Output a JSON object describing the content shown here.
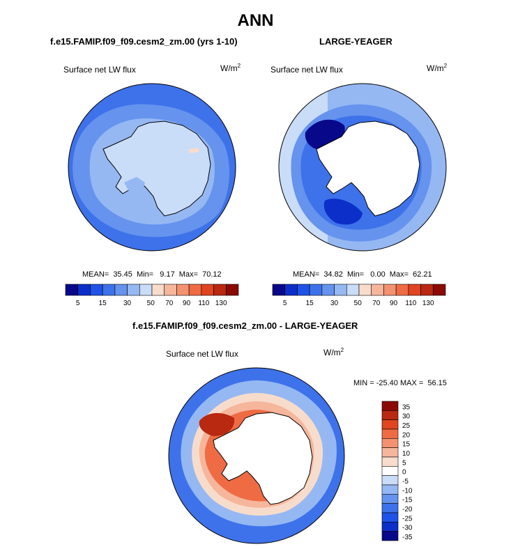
{
  "page_title": "ANN",
  "panels": [
    {
      "title": "f.e15.FAMIP.f09_f09.cesm2_zm.00 (yrs 1-10)",
      "variable": "Surface net LW flux",
      "units": "W/m",
      "units_sup": "2",
      "stats": "MEAN=  35.45  Min=   9.17  Max=  70.12",
      "colorbar_labels": [
        "5",
        "15",
        "30",
        "50",
        "70",
        "90",
        "110",
        "130"
      ]
    },
    {
      "title": "LARGE-YEAGER",
      "variable": "Surface net LW flux",
      "units": "W/m",
      "units_sup": "2",
      "stats": "MEAN=  34.82  Min=   0.00  Max=  62.21",
      "colorbar_labels": [
        "5",
        "15",
        "30",
        "50",
        "70",
        "90",
        "110",
        "130"
      ]
    },
    {
      "title": "f.e15.FAMIP.f09_f09.cesm2_zm.00 - LARGE-YEAGER",
      "variable": "Surface net LW flux",
      "units": "W/m",
      "units_sup": "2",
      "stats": "MIN = -25.40 MAX =  56.15",
      "colorbar_labels": [
        "35",
        "30",
        "25",
        "20",
        "15",
        "10",
        "5",
        "0",
        "-5",
        "-10",
        "-15",
        "-20",
        "-25",
        "-30",
        "-35"
      ]
    }
  ],
  "chart_data": {
    "type": "heatmap",
    "projection": "south polar stereographic",
    "colors": {
      "abs_scale": [
        "#08088a",
        "#0b2fc8",
        "#1f52e6",
        "#3e72ea",
        "#6593ee",
        "#95b8f3",
        "#c9dcf8",
        "#f8dccb",
        "#f6b69c",
        "#f39270",
        "#ef6b44",
        "#e04420",
        "#b92810",
        "#8a0a04"
      ],
      "diff_scale": [
        "#8a0a04",
        "#b92810",
        "#e04420",
        "#ef6b44",
        "#f39270",
        "#f6b69c",
        "#f8dccb",
        "#ffffff",
        "#c9dcf8",
        "#95b8f3",
        "#6593ee",
        "#3e72ea",
        "#1f52e6",
        "#0b2fc8",
        "#08088a"
      ]
    }
  }
}
